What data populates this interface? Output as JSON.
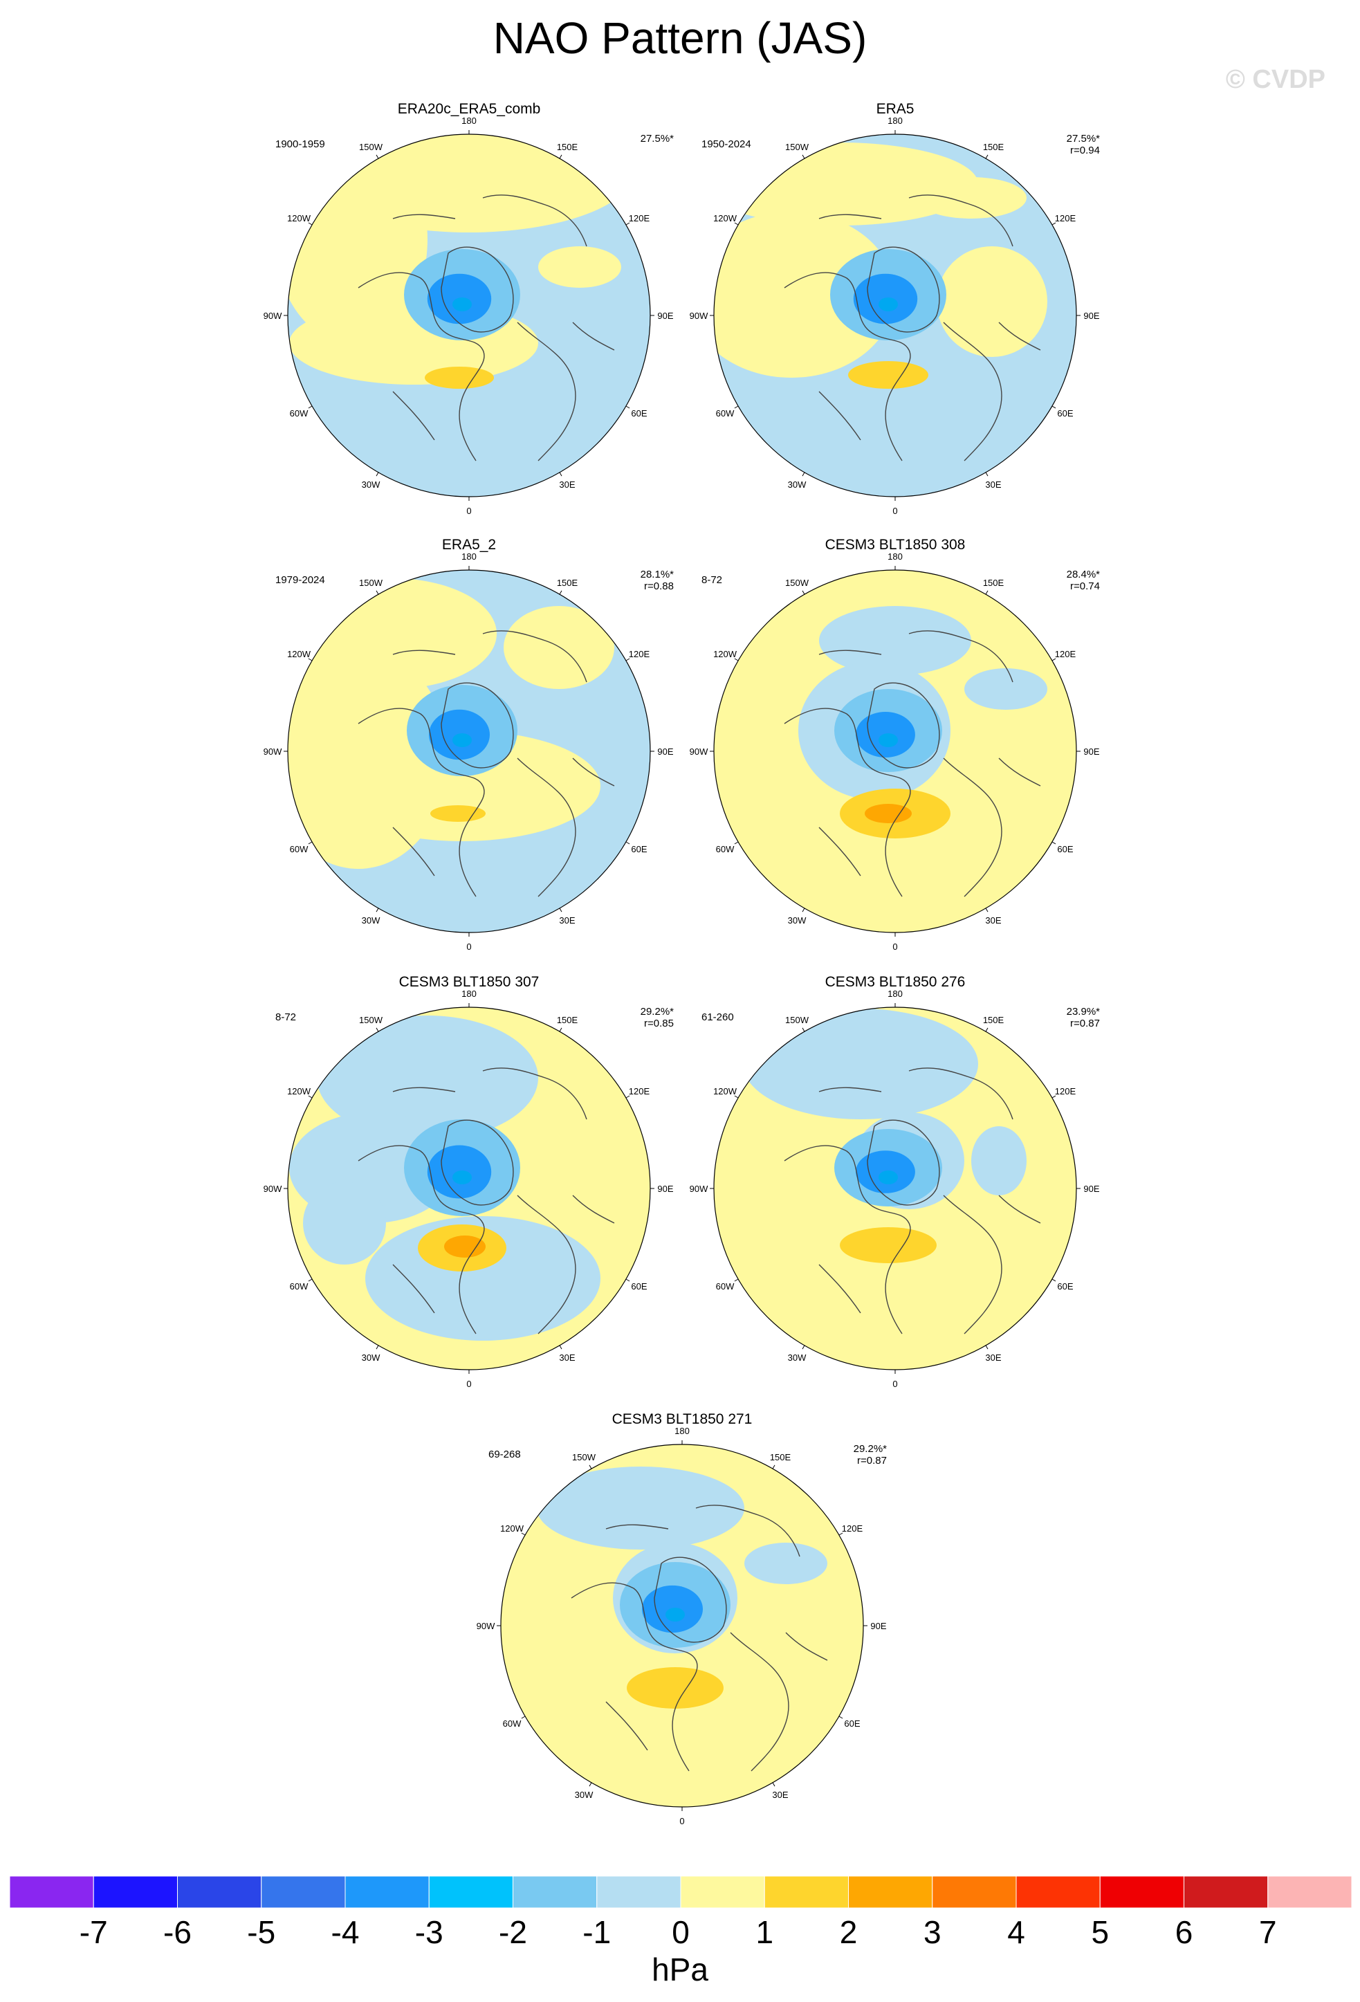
{
  "title": "NAO Pattern (JAS)",
  "watermark": "© CVDP",
  "longitude_labels": {
    "lbl180": "180",
    "lbl150e": "150E",
    "lbl120e": "120E",
    "lbl90e": "90E",
    "lbl60e": "60E",
    "lbl30e": "30E",
    "lbl0": "0",
    "lbl30w": "30W",
    "lbl60w": "60W",
    "lbl90w": "90W",
    "lbl120w": "120W",
    "lbl150w": "150W"
  },
  "panels": [
    {
      "title": "ERA20c_ERA5_comb",
      "period": "1900-1959",
      "pct": "27.5%*",
      "r": ""
    },
    {
      "title": "ERA5",
      "period": "1950-2024",
      "pct": "27.5%*",
      "r": "r=0.94"
    },
    {
      "title": "ERA5_2",
      "period": "1979-2024",
      "pct": "28.1%*",
      "r": "r=0.88"
    },
    {
      "title": "CESM3 BLT1850 308",
      "period": "8-72",
      "pct": "28.4%*",
      "r": "r=0.74"
    },
    {
      "title": "CESM3 BLT1850 307",
      "period": "8-72",
      "pct": "29.2%*",
      "r": "r=0.85"
    },
    {
      "title": "CESM3 BLT1850 276",
      "period": "61-260",
      "pct": "23.9%*",
      "r": "r=0.87"
    },
    {
      "title": "CESM3 BLT1850 271",
      "period": "69-268",
      "pct": "29.2%*",
      "r": "r=0.87"
    }
  ],
  "colorbar": {
    "labels": [
      "-7",
      "-6",
      "-5",
      "-4",
      "-3",
      "-2",
      "-1",
      "0",
      "1",
      "2",
      "3",
      "4",
      "5",
      "6",
      "7"
    ],
    "colors": [
      "#8a26f0",
      "#1c14ff",
      "#2a45e8",
      "#3575ec",
      "#1e98fa",
      "#00c2fc",
      "#79c9f1",
      "#b5def2",
      "#fef99e",
      "#fed52d",
      "#fea702",
      "#fe7905",
      "#fd3304",
      "#ef0003",
      "#d01b1d",
      "#fcb4b4"
    ],
    "unit": "hPa"
  }
}
